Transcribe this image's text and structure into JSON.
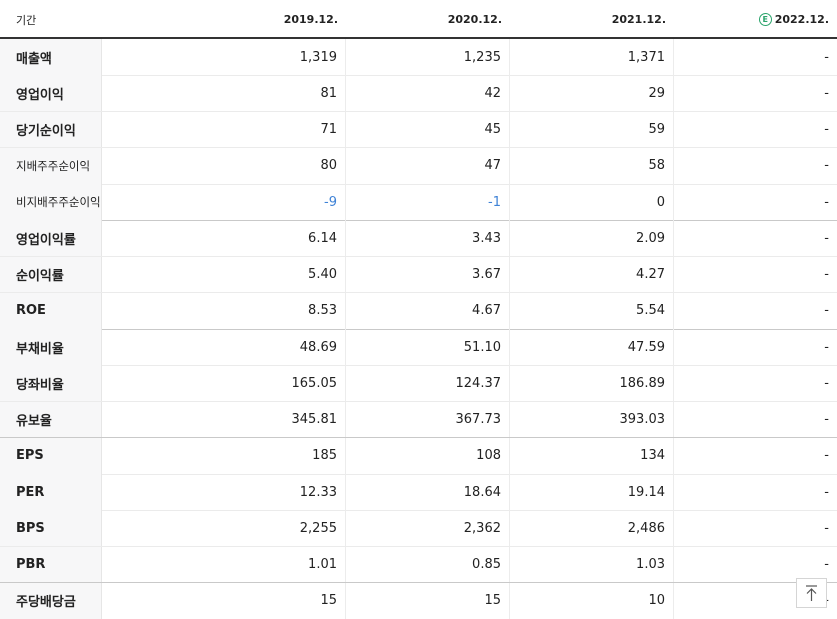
{
  "table": {
    "header": [
      "기간",
      "2019.12.",
      "2020.12.",
      "2021.12.",
      "2022.12."
    ],
    "estimate_badge": "E",
    "rows": [
      {
        "label": "매출액",
        "cells": [
          "1,319",
          "1,235",
          "1,371",
          "-"
        ]
      },
      {
        "label": "영업이익",
        "cells": [
          "81",
          "42",
          "29",
          "-"
        ]
      },
      {
        "label": "당기순이익",
        "cells": [
          "71",
          "45",
          "59",
          "-"
        ]
      },
      {
        "label": "지배주주순이익",
        "cells": [
          "80",
          "47",
          "58",
          "-"
        ]
      },
      {
        "label": "비지배주주순이익",
        "cells": [
          "-9",
          "-1",
          "0",
          "-"
        ]
      },
      {
        "label": "영업이익률",
        "cells": [
          "6.14",
          "3.43",
          "2.09",
          "-"
        ]
      },
      {
        "label": "순이익률",
        "cells": [
          "5.40",
          "3.67",
          "4.27",
          "-"
        ]
      },
      {
        "label": "ROE",
        "cells": [
          "8.53",
          "4.67",
          "5.54",
          "-"
        ]
      },
      {
        "label": "부채비율",
        "cells": [
          "48.69",
          "51.10",
          "47.59",
          "-"
        ]
      },
      {
        "label": "당좌비율",
        "cells": [
          "165.05",
          "124.37",
          "186.89",
          "-"
        ]
      },
      {
        "label": "유보율",
        "cells": [
          "345.81",
          "367.73",
          "393.03",
          "-"
        ]
      },
      {
        "label": "EPS",
        "cells": [
          "185",
          "108",
          "134",
          "-"
        ]
      },
      {
        "label": "PER",
        "cells": [
          "12.33",
          "18.64",
          "19.14",
          "-"
        ]
      },
      {
        "label": "BPS",
        "cells": [
          "2,255",
          "2,362",
          "2,486",
          "-"
        ]
      },
      {
        "label": "PBR",
        "cells": [
          "1.01",
          "0.85",
          "1.03",
          "-"
        ]
      },
      {
        "label": "주당배당금",
        "cells": [
          "15",
          "15",
          "10",
          "-"
        ]
      }
    ]
  }
}
